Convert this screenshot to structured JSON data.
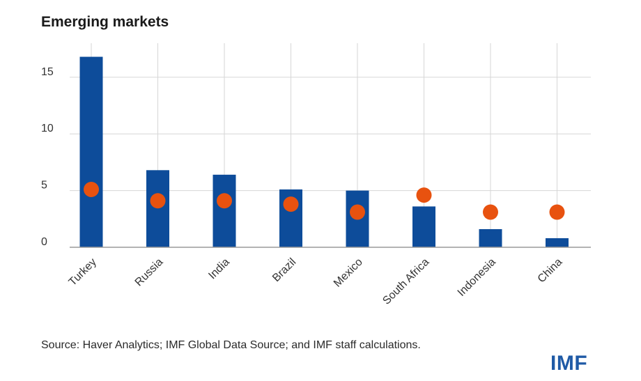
{
  "chart_data": {
    "type": "bar",
    "title": "Emerging markets",
    "categories": [
      "Turkey",
      "Russia",
      "India",
      "Brazil",
      "Mexico",
      "South Africa",
      "Indonesia",
      "China"
    ],
    "series": [
      {
        "type": "bar",
        "color": "#0d4c9a",
        "values": [
          16.8,
          6.8,
          6.4,
          5.1,
          5.0,
          3.6,
          1.6,
          0.8
        ]
      },
      {
        "type": "scatter",
        "color": "#e8520f",
        "values": [
          5.1,
          4.1,
          4.1,
          3.8,
          3.1,
          4.6,
          3.1,
          3.1
        ]
      }
    ],
    "yticks": [
      0,
      5,
      10,
      15
    ],
    "ylim": [
      0,
      18
    ],
    "grid": true
  },
  "source": "Source: Haver Analytics; IMF Global Data Source; and IMF staff calculations.",
  "logo_text": "IMF"
}
